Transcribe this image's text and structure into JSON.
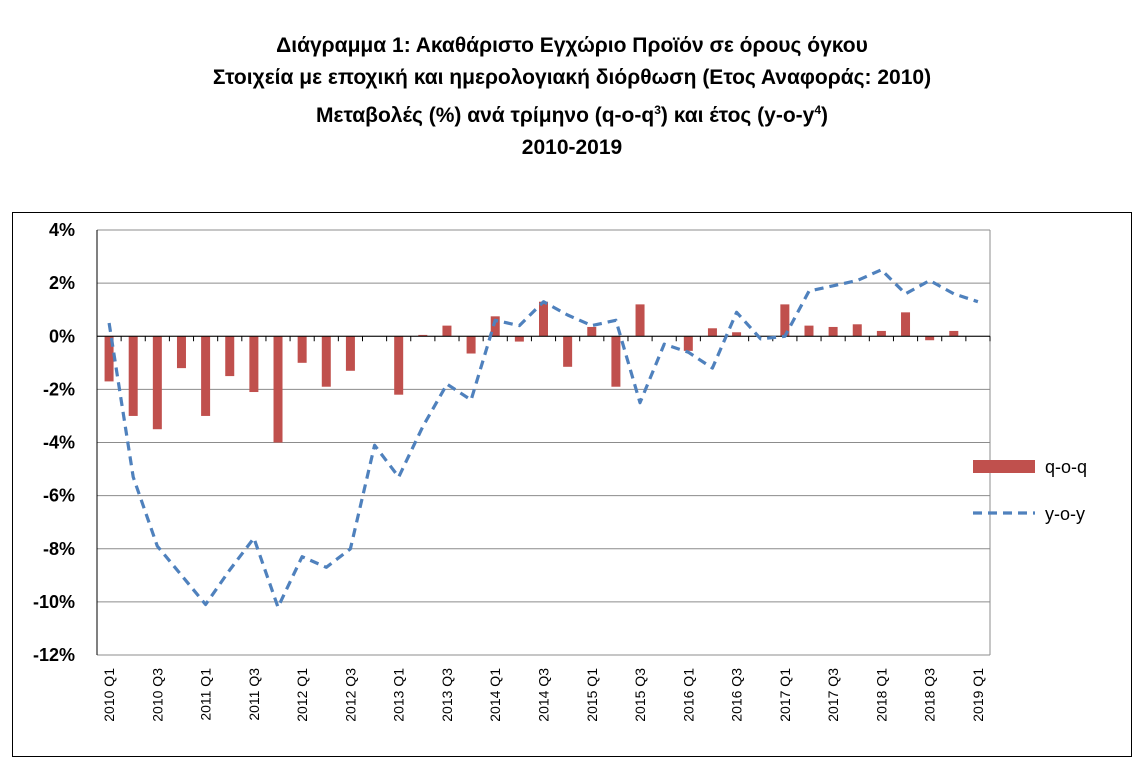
{
  "title": {
    "line1": "Διάγραμμα 1: Ακαθάριστο Εγχώριο Προϊόν σε όρους όγκου",
    "line2": "Στοιχεία με εποχική και ημερολογιακή διόρθωση (Ετος Αναφοράς: 2010)",
    "line3_a": "Μεταβολές (%) ανά τρίμηνο (q-o-q",
    "line3_sup1": "3",
    "line3_b": ") και έτος (y-o-y",
    "line3_sup2": "4",
    "line3_c": ")",
    "line4": "2010-2019"
  },
  "chart_data": {
    "type": "bar",
    "xlabel": "",
    "ylabel": "",
    "ylim": [
      -12,
      4
    ],
    "y_ticks": [
      4,
      2,
      0,
      -2,
      -4,
      -6,
      -8,
      -10,
      -12
    ],
    "y_tick_format": "percent",
    "grid": true,
    "legend_position": "right",
    "categories": [
      "2010 Q1",
      "2010 Q2",
      "2010 Q3",
      "2010 Q4",
      "2011 Q1",
      "2011 Q2",
      "2011 Q3",
      "2011 Q4",
      "2012 Q1",
      "2012 Q2",
      "2012 Q3",
      "2012 Q4",
      "2013 Q1",
      "2013 Q2",
      "2013 Q3",
      "2013 Q4",
      "2014 Q1",
      "2014 Q2",
      "2014 Q3",
      "2014 Q4",
      "2015 Q1",
      "2015 Q2",
      "2015 Q3",
      "2015 Q4",
      "2016 Q1",
      "2016 Q2",
      "2016 Q3",
      "2016 Q4",
      "2017 Q1",
      "2017 Q2",
      "2017 Q3",
      "2017 Q4",
      "2018 Q1",
      "2018 Q2",
      "2018 Q3",
      "2018 Q4",
      "2019 Q1"
    ],
    "x_tick_labels": [
      "2010 Q1",
      "2010 Q3",
      "2011 Q1",
      "2011 Q3",
      "2012 Q1",
      "2012 Q3",
      "2013 Q1",
      "2013 Q3",
      "2014 Q1",
      "2014 Q3",
      "2015 Q1",
      "2015 Q3",
      "2016 Q1",
      "2016 Q3",
      "2017 Q1",
      "2017 Q3",
      "2018 Q1",
      "2018 Q3",
      "2019 Q1"
    ],
    "series": [
      {
        "name": "q-o-q",
        "kind": "bar",
        "color": "#c0504d",
        "values": [
          -1.7,
          -3.0,
          -3.5,
          -1.2,
          -3.0,
          -1.5,
          -2.1,
          -4.0,
          -1.0,
          -1.9,
          -1.3,
          0.0,
          -2.2,
          0.05,
          0.4,
          -0.65,
          0.75,
          -0.2,
          1.3,
          -1.15,
          0.35,
          -1.9,
          1.2,
          0.0,
          -0.55,
          0.3,
          0.15,
          0.0,
          1.2,
          0.4,
          0.35,
          0.45,
          0.2,
          0.9,
          -0.15,
          0.2,
          0.0
        ]
      },
      {
        "name": "y-o-y",
        "kind": "line",
        "style": "dashed",
        "color": "#4f81bd",
        "values": [
          0.5,
          -5.3,
          -7.9,
          -9.0,
          -10.1,
          -8.8,
          -7.6,
          -10.2,
          -8.3,
          -8.7,
          -8.0,
          -4.1,
          -5.3,
          -3.4,
          -1.8,
          -2.4,
          0.6,
          0.4,
          1.3,
          0.8,
          0.4,
          0.6,
          -2.5,
          -0.3,
          -0.6,
          -1.2,
          0.9,
          -0.1,
          0.0,
          1.7,
          1.9,
          2.1,
          2.5,
          1.6,
          2.1,
          1.6,
          1.3
        ]
      }
    ]
  }
}
